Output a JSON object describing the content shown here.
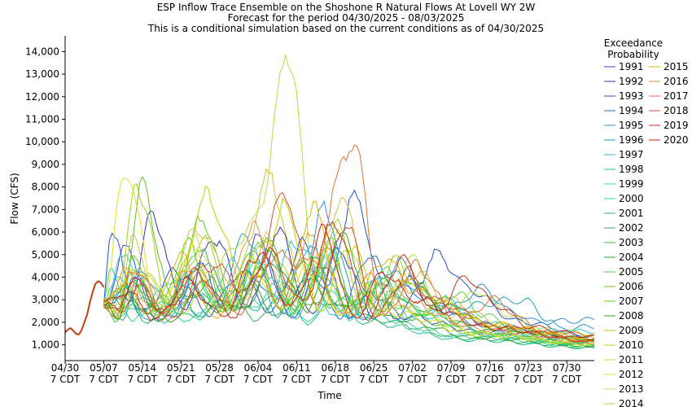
{
  "chart_data": {
    "type": "line",
    "title": [
      "ESP Inflow Trace Ensemble on the Shoshone R Natural Flows At Lovell WY 2W",
      "Forecast for the period 04/30/2025 - 08/03/2025",
      "This is a conditional simulation based on the current conditions as of 04/30/2025"
    ],
    "xlabel": "Time",
    "ylabel": "Flow (CFS)",
    "x_ticks": [
      [
        "04/30",
        "7 CDT"
      ],
      [
        "05/07",
        "7 CDT"
      ],
      [
        "05/14",
        "7 CDT"
      ],
      [
        "05/21",
        "7 CDT"
      ],
      [
        "05/28",
        "7 CDT"
      ],
      [
        "06/04",
        "7 CDT"
      ],
      [
        "06/11",
        "7 CDT"
      ],
      [
        "06/18",
        "7 CDT"
      ],
      [
        "06/25",
        "7 CDT"
      ],
      [
        "07/02",
        "7 CDT"
      ],
      [
        "07/09",
        "7 CDT"
      ],
      [
        "07/16",
        "7 CDT"
      ],
      [
        "07/23",
        "7 CDT"
      ],
      [
        "07/30",
        "7 CDT"
      ]
    ],
    "y_ticks": [
      "1,000",
      "2,000",
      "3,000",
      "4,000",
      "5,000",
      "6,000",
      "7,000",
      "8,000",
      "9,000",
      "10,000",
      "11,000",
      "12,000",
      "13,000",
      "14,000"
    ],
    "ylim": [
      300,
      14700
    ],
    "x_range_days": [
      0,
      96
    ],
    "grid": false,
    "legend_title": [
      "Exceedance",
      "Probability"
    ],
    "legend_position": "right",
    "observed": {
      "days": [
        0,
        0.5,
        1,
        1.5,
        2,
        2.5,
        3,
        3.5,
        4,
        4.5,
        5,
        5.5,
        6,
        6.5,
        7
      ],
      "values": [
        1550,
        1680,
        1740,
        1620,
        1480,
        1460,
        1650,
        2000,
        2350,
        2900,
        3350,
        3700,
        3820,
        3750,
        3550
      ]
    },
    "series": [
      {
        "name": "1991",
        "color": "#4040e0",
        "peaks": [
          [
            11,
            5200
          ],
          [
            24,
            4600
          ],
          [
            35,
            5600
          ],
          [
            47,
            4700
          ],
          [
            56,
            3300
          ]
        ],
        "end": 1300
      },
      {
        "name": "1992",
        "color": "#3030b0",
        "peaks": [
          [
            16,
            6700
          ],
          [
            27,
            5800
          ],
          [
            39,
            5900
          ],
          [
            50,
            5200
          ],
          [
            62,
            3900
          ]
        ],
        "end": 1250
      },
      {
        "name": "1993",
        "color": "#2050d0",
        "peaks": [
          [
            8,
            5800
          ],
          [
            20,
            4200
          ],
          [
            32,
            4300
          ],
          [
            43,
            5400
          ],
          [
            52,
            7500
          ],
          [
            68,
            5000
          ]
        ],
        "end": 1350
      },
      {
        "name": "1994",
        "color": "#2070c0",
        "peaks": [
          [
            12,
            3900
          ],
          [
            23,
            3500
          ],
          [
            34,
            4100
          ],
          [
            45,
            4200
          ],
          [
            55,
            5000
          ]
        ],
        "end": 1100
      },
      {
        "name": "1995",
        "color": "#3090d0",
        "peaks": [
          [
            14,
            4300
          ],
          [
            25,
            4700
          ],
          [
            37,
            5000
          ],
          [
            47,
            6900
          ],
          [
            61,
            4600
          ],
          [
            76,
            3500
          ]
        ],
        "end": 2100
      },
      {
        "name": "1996",
        "color": "#20a0c0",
        "peaks": [
          [
            10,
            3500
          ],
          [
            22,
            4000
          ],
          [
            33,
            6000
          ],
          [
            44,
            5300
          ],
          [
            58,
            4200
          ],
          [
            83,
            3000
          ]
        ],
        "end": 1800
      },
      {
        "name": "1997",
        "color": "#30c0d0",
        "peaks": [
          [
            9,
            4100
          ],
          [
            19,
            3900
          ],
          [
            30,
            4600
          ],
          [
            42,
            5600
          ],
          [
            57,
            3900
          ],
          [
            70,
            3000
          ]
        ],
        "end": 1600
      },
      {
        "name": "1998",
        "color": "#20c0b0",
        "peaks": [
          [
            13,
            3200
          ],
          [
            24,
            3600
          ],
          [
            36,
            4400
          ],
          [
            48,
            4900
          ],
          [
            60,
            3300
          ]
        ],
        "end": 1000
      },
      {
        "name": "1999",
        "color": "#40d0c0",
        "peaks": [
          [
            11,
            5000
          ],
          [
            23,
            4100
          ],
          [
            36,
            4800
          ],
          [
            46,
            5200
          ],
          [
            58,
            3800
          ]
        ],
        "end": 1150
      },
      {
        "name": "2000",
        "color": "#30d0a0",
        "peaks": [
          [
            8,
            4200
          ],
          [
            17,
            3100
          ],
          [
            28,
            3300
          ],
          [
            38,
            3500
          ],
          [
            49,
            3300
          ]
        ],
        "end": 900
      },
      {
        "name": "2001",
        "color": "#20c080",
        "peaks": [
          [
            9,
            3000
          ],
          [
            18,
            2800
          ],
          [
            29,
            2900
          ],
          [
            39,
            3200
          ],
          [
            49,
            2900
          ]
        ],
        "end": 850
      },
      {
        "name": "2002",
        "color": "#30b060",
        "peaks": [
          [
            10,
            3300
          ],
          [
            20,
            3100
          ],
          [
            30,
            3400
          ],
          [
            40,
            3600
          ],
          [
            51,
            3000
          ]
        ],
        "end": 900
      },
      {
        "name": "2003",
        "color": "#40c040",
        "peaks": [
          [
            12,
            4000
          ],
          [
            24,
            5300
          ],
          [
            35,
            4400
          ],
          [
            46,
            4700
          ],
          [
            56,
            3300
          ]
        ],
        "end": 1050
      },
      {
        "name": "2004",
        "color": "#30a030",
        "peaks": [
          [
            11,
            3400
          ],
          [
            22,
            3300
          ],
          [
            33,
            3700
          ],
          [
            44,
            4100
          ],
          [
            54,
            3100
          ]
        ],
        "end": 950
      },
      {
        "name": "2005",
        "color": "#50d050",
        "peaks": [
          [
            13,
            3600
          ],
          [
            24,
            4300
          ],
          [
            36,
            5600
          ],
          [
            48,
            5400
          ],
          [
            58,
            4200
          ],
          [
            71,
            3300
          ]
        ],
        "end": 1250
      },
      {
        "name": "2006",
        "color": "#60c020",
        "peaks": [
          [
            14,
            7900
          ],
          [
            25,
            6600
          ],
          [
            36,
            5900
          ],
          [
            48,
            5000
          ],
          [
            58,
            3800
          ]
        ],
        "end": 1100
      },
      {
        "name": "2007",
        "color": "#50e000",
        "peaks": [
          [
            12,
            4800
          ],
          [
            22,
            5400
          ],
          [
            34,
            5000
          ],
          [
            44,
            4800
          ],
          [
            56,
            3600
          ]
        ],
        "end": 950
      },
      {
        "name": "2008",
        "color": "#40a010",
        "peaks": [
          [
            12,
            3600
          ],
          [
            26,
            3800
          ],
          [
            38,
            4600
          ],
          [
            50,
            5800
          ],
          [
            63,
            3900
          ]
        ],
        "end": 1200
      },
      {
        "name": "2009",
        "color": "#a0d020",
        "peaks": [
          [
            13,
            8200
          ],
          [
            25,
            5600
          ],
          [
            37,
            5500
          ],
          [
            49,
            6300
          ],
          [
            60,
            4700
          ]
        ],
        "end": 1150
      },
      {
        "name": "2010",
        "color": "#c0d000",
        "peaks": [
          [
            12,
            4400
          ],
          [
            26,
            7500
          ],
          [
            40,
            7000
          ],
          [
            52,
            5600
          ],
          [
            62,
            4000
          ]
        ],
        "end": 1250
      },
      {
        "name": "2011",
        "color": "#b0e040",
        "peaks": [
          [
            15,
            3900
          ],
          [
            27,
            4400
          ],
          [
            41,
            13900
          ],
          [
            50,
            6000
          ],
          [
            63,
            4800
          ],
          [
            75,
            3400
          ]
        ],
        "end": 1500
      },
      {
        "name": "2012",
        "color": "#e0e020",
        "peaks": [
          [
            11,
            8800
          ],
          [
            23,
            5200
          ],
          [
            34,
            4600
          ],
          [
            44,
            4300
          ],
          [
            55,
            3400
          ]
        ],
        "end": 1000
      },
      {
        "name": "2013",
        "color": "#d0d060",
        "peaks": [
          [
            13,
            4100
          ],
          [
            24,
            5600
          ],
          [
            36,
            5900
          ],
          [
            46,
            5100
          ],
          [
            57,
            3600
          ]
        ],
        "end": 1050
      },
      {
        "name": "2014",
        "color": "#d0c040",
        "peaks": [
          [
            12,
            5500
          ],
          [
            24,
            6200
          ],
          [
            37,
            8300
          ],
          [
            50,
            7300
          ],
          [
            64,
            4300
          ]
        ],
        "end": 1300
      },
      {
        "name": "2015",
        "color": "#e0b000",
        "peaks": [
          [
            10,
            3700
          ],
          [
            21,
            4900
          ],
          [
            33,
            4300
          ],
          [
            45,
            6900
          ],
          [
            58,
            4900
          ]
        ],
        "end": 1200
      },
      {
        "name": "2016",
        "color": "#e09040",
        "peaks": [
          [
            11,
            4200
          ],
          [
            23,
            4500
          ],
          [
            34,
            6300
          ],
          [
            44,
            5700
          ],
          [
            56,
            4100
          ]
        ],
        "end": 1100
      },
      {
        "name": "2017",
        "color": "#e07030",
        "peaks": [
          [
            12,
            4500
          ],
          [
            25,
            3600
          ],
          [
            38,
            4900
          ],
          [
            52,
            10100
          ],
          [
            64,
            4500
          ],
          [
            78,
            3000
          ]
        ],
        "end": 1450
      },
      {
        "name": "2018",
        "color": "#d05030",
        "peaks": [
          [
            13,
            3600
          ],
          [
            26,
            4600
          ],
          [
            40,
            7600
          ],
          [
            51,
            6400
          ],
          [
            62,
            4200
          ]
        ],
        "end": 1200
      },
      {
        "name": "2019",
        "color": "#c03020",
        "peaks": [
          [
            12,
            3900
          ],
          [
            24,
            4200
          ],
          [
            37,
            5100
          ],
          [
            49,
            6400
          ],
          [
            61,
            4800
          ],
          [
            73,
            4000
          ]
        ],
        "end": 1350
      },
      {
        "name": "2020",
        "color": "#d02010",
        "peaks": [
          [
            11,
            3400
          ],
          [
            22,
            3800
          ],
          [
            35,
            5100
          ],
          [
            47,
            6000
          ],
          [
            58,
            4300
          ]
        ],
        "end": 1150
      }
    ]
  }
}
